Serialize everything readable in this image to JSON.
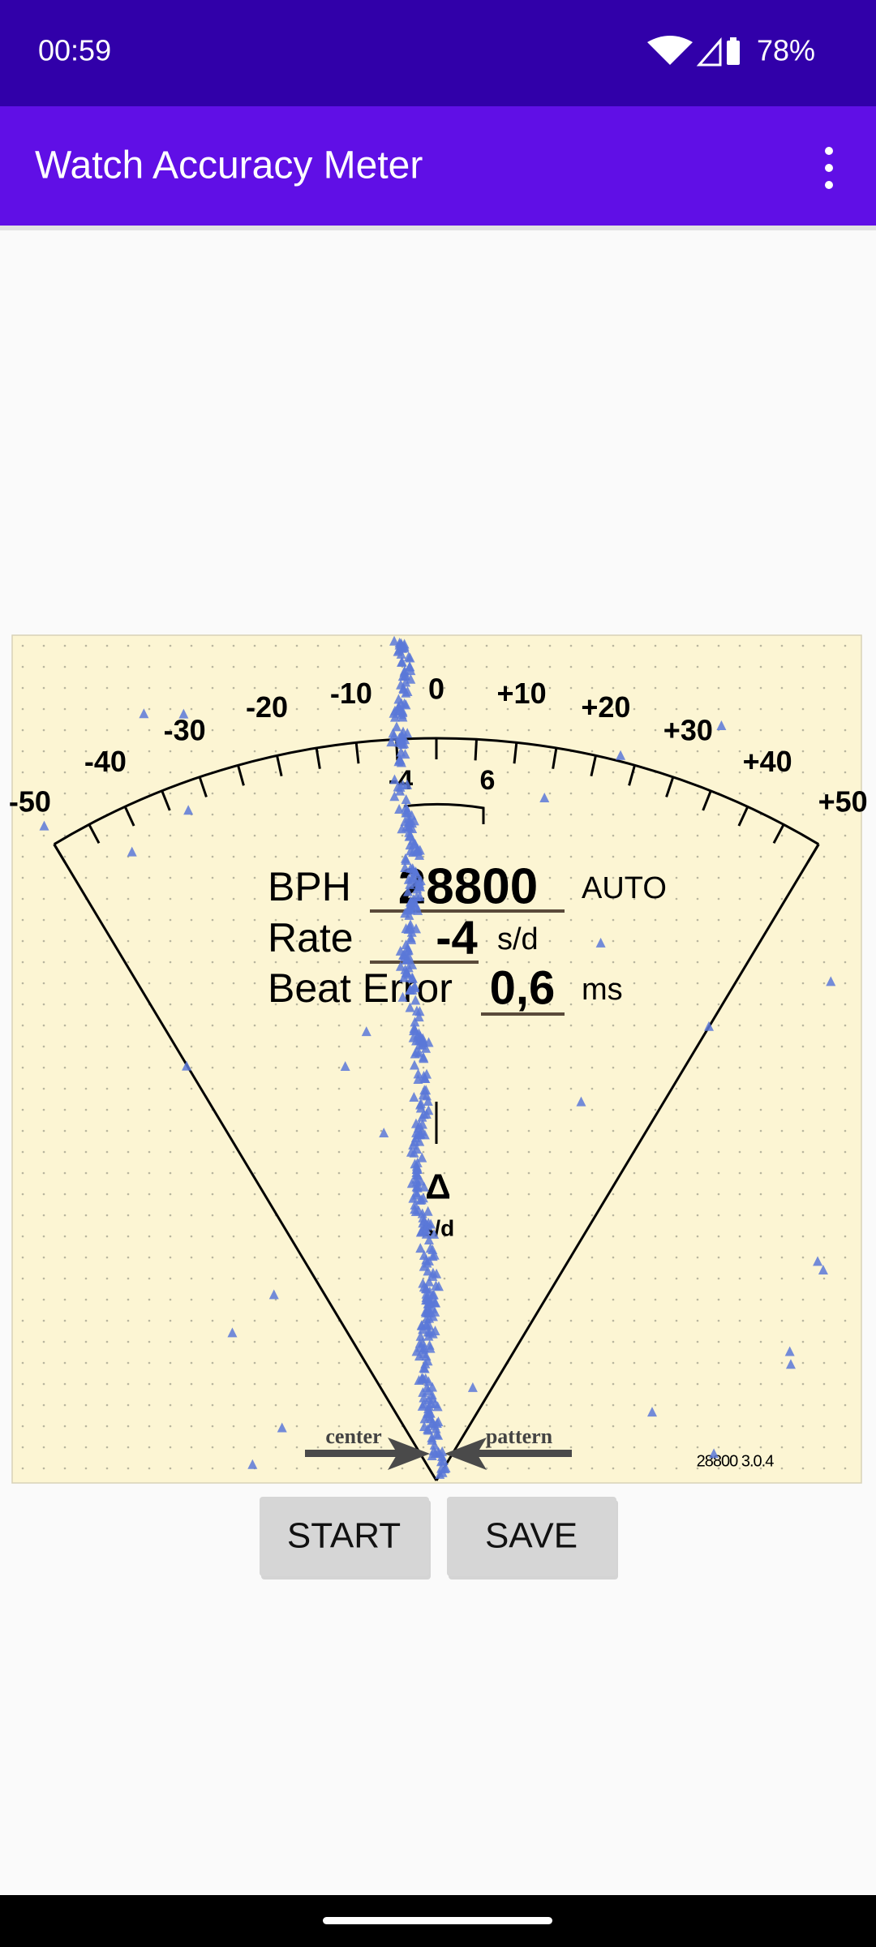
{
  "status_bar": {
    "time": "00:59",
    "battery": "78%"
  },
  "app_bar": {
    "title": "Watch Accuracy Meter"
  },
  "meter": {
    "scale_labels": [
      "-50",
      "-40",
      "-30",
      "-20",
      "-10",
      "0",
      "+10",
      "+20",
      "+30",
      "+40",
      "+50"
    ],
    "bracket_labels": [
      "-4",
      "6"
    ],
    "readout": {
      "bph_label": "BPH",
      "bph": "28800",
      "mode": "AUTO",
      "rate_label": "Rate",
      "rate": "-4",
      "rate_unit": "s/d",
      "beat_error_label": "Beat Error",
      "beat_error": "0,6",
      "beat_error_unit": "ms"
    },
    "delta_symbol": "Δ",
    "delta_unit": "s/d",
    "center_label": "center",
    "pattern_label": "pattern",
    "version": "28800 3.0.4"
  },
  "buttons": [
    "START",
    "SAVE"
  ]
}
